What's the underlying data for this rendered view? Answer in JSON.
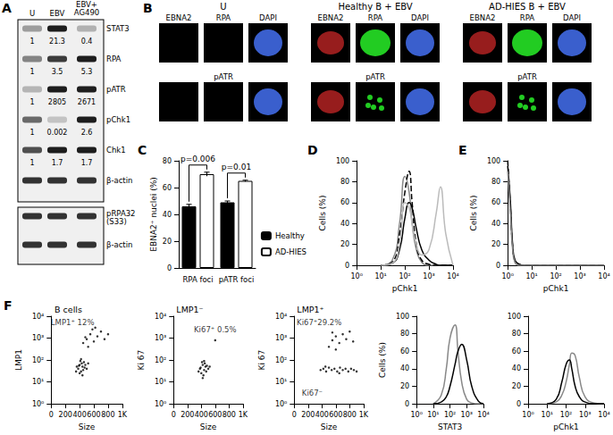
{
  "panel_A": {
    "label": "A",
    "lanes": [
      "U",
      "EBV",
      "EBV+\nAG490"
    ],
    "blots": [
      [
        {
          "name": "STAT3",
          "quant": [
            1,
            21.3,
            0.4
          ]
        },
        {
          "name": "RPA",
          "quant": [
            1,
            3.5,
            5.3
          ]
        },
        {
          "name": "pATR",
          "quant": [
            1,
            2805,
            2671
          ]
        },
        {
          "name": "pChk1",
          "quant": [
            1,
            0.002,
            2.6
          ]
        },
        {
          "name": "Chk1",
          "quant": [
            1,
            1.7,
            1.7
          ]
        },
        {
          "name": "β-actin"
        }
      ],
      [
        {
          "name": "pRPA32\n(S33)"
        },
        {
          "name": "β-actin"
        }
      ]
    ]
  },
  "panel_B": {
    "label": "B",
    "groups": [
      {
        "title": "U",
        "rows": [
          [
            "EBNA2",
            "RPA",
            "DAPI"
          ],
          [
            null,
            "pATR",
            null
          ]
        ]
      },
      {
        "title": "Healthy B + EBV",
        "rows": [
          [
            "EBNA2",
            "RPA",
            "DAPI"
          ],
          [
            null,
            "pATR",
            null
          ]
        ]
      },
      {
        "title": "AD-HIES B + EBV",
        "rows": [
          [
            "EBNA2",
            "RPA",
            "DAPI"
          ],
          [
            null,
            "pATR",
            null
          ]
        ]
      }
    ]
  },
  "chart_data": [
    {
      "panel": "C",
      "type": "bar",
      "categories": [
        "RPA foci",
        "pATR foci"
      ],
      "series": [
        {
          "name": "Healthy",
          "color": "#000000",
          "values": [
            46,
            49
          ],
          "errors": [
            1.5,
            1
          ]
        },
        {
          "name": "AD-HIES",
          "color": "#ffffff",
          "values": [
            70,
            65
          ],
          "errors": [
            1.5,
            0.5
          ]
        }
      ],
      "ylabel": "EBNA2⁺ nuclei (%)",
      "ylim": [
        0,
        80
      ],
      "yticks": [
        0,
        20,
        40,
        60,
        80
      ],
      "annotations": [
        {
          "text": "p=0.006",
          "category": "RPA foci"
        },
        {
          "text": "p=0.01",
          "category": "pATR foci"
        }
      ],
      "legend": "bottom-right"
    },
    {
      "panel": "D",
      "type": "line",
      "log": "x",
      "x": [
        10,
        30,
        60,
        100,
        150,
        200,
        300,
        500,
        1000,
        2000,
        3000,
        5000,
        10000
      ],
      "series": [
        {
          "color": "#888888",
          "line_style": "solid",
          "values": [
            0,
            5,
            40,
            85,
            70,
            40,
            15,
            3,
            0,
            0,
            0,
            0,
            0
          ]
        },
        {
          "color": "#000000",
          "line_style": "dashed",
          "values": [
            0,
            3,
            30,
            70,
            90,
            60,
            20,
            5,
            1,
            0,
            0,
            0,
            0
          ]
        },
        {
          "color": "#000000",
          "line_style": "solid",
          "values": [
            0,
            2,
            15,
            45,
            60,
            55,
            35,
            15,
            5,
            1,
            0,
            0,
            0
          ]
        },
        {
          "color": "#bbbbbb",
          "line_style": "solid",
          "values": [
            0,
            2,
            20,
            60,
            55,
            40,
            20,
            10,
            15,
            50,
            75,
            30,
            0
          ]
        }
      ],
      "xlabel": "pChk1",
      "ylabel": "Cells (%)",
      "xlim": [
        1,
        10000
      ],
      "xticks": [
        {
          "value": 1,
          "label": "10⁰"
        },
        {
          "value": 10,
          "label": "10¹"
        },
        {
          "value": 100,
          "label": "10²"
        },
        {
          "value": 1000,
          "label": "10³"
        },
        {
          "value": 10000,
          "label": "10⁴"
        }
      ],
      "ylim": [
        0,
        100
      ],
      "yticks": [
        0,
        20,
        40,
        60,
        80,
        100
      ]
    },
    {
      "panel": "E",
      "type": "line",
      "log": "x",
      "x": [
        1,
        1.3,
        1.6,
        2,
        3,
        5,
        10,
        100,
        10000
      ],
      "series": [
        {
          "color": "#000000",
          "line_style": "solid",
          "values": [
            95,
            60,
            20,
            5,
            1,
            0,
            0,
            0,
            0
          ]
        },
        {
          "color": "#000000",
          "line_style": "dashed",
          "values": [
            100,
            55,
            18,
            4,
            1,
            0,
            0,
            0,
            0
          ]
        },
        {
          "color": "#888888",
          "line_style": "solid",
          "values": [
            90,
            50,
            15,
            3,
            0,
            0,
            0,
            0,
            0
          ]
        }
      ],
      "xlabel": "pChk1",
      "ylabel": "Cells (%)",
      "xlim": [
        1,
        10000
      ],
      "xticks": [
        {
          "value": 1,
          "label": "10⁰"
        },
        {
          "value": 10,
          "label": "10¹"
        },
        {
          "value": 100,
          "label": "10²"
        },
        {
          "value": 1000,
          "label": "10³"
        },
        {
          "value": 10000,
          "label": "10⁴"
        }
      ],
      "ylim": [
        0,
        100
      ],
      "yticks": [
        0,
        20,
        40,
        60,
        80,
        100
      ]
    },
    {
      "panel": "F",
      "type": "scatter",
      "title": "B cells",
      "log": "y",
      "color": "#000000",
      "x": [
        380,
        400,
        420,
        440,
        460,
        400,
        430,
        470,
        410,
        450,
        390,
        480,
        500,
        420,
        360,
        440,
        520,
        350,
        450,
        500,
        550,
        600,
        650,
        700,
        520,
        580,
        750,
        800,
        480,
        620
      ],
      "values": [
        40,
        60,
        30,
        50,
        80,
        25,
        70,
        45,
        90,
        35,
        55,
        60,
        40,
        110,
        50,
        20,
        70,
        30,
        600,
        900,
        1500,
        700,
        1200,
        2000,
        400,
        2500,
        900,
        1500,
        1100,
        3000
      ],
      "annotations": [
        {
          "text": "LMP1⁺ 12%",
          "x": 300,
          "y": 5000
        }
      ],
      "xlabel": "Size",
      "ylabel": "LMP1",
      "xlim": [
        0,
        1000
      ],
      "xticks": [
        0,
        200,
        400,
        600,
        800,
        {
          "value": 1000,
          "label": "1K"
        }
      ],
      "ylim": [
        1,
        10000
      ],
      "yticks": [
        {
          "value": 1,
          "label": "10⁰"
        },
        {
          "value": 10,
          "label": "10¹"
        },
        {
          "value": 100,
          "label": "10²"
        },
        {
          "value": 1000,
          "label": "10³"
        },
        {
          "value": 10000,
          "label": "10⁴"
        }
      ]
    },
    {
      "type": "scatter",
      "title": "LMP1⁻",
      "log": "y",
      "color": "#000000",
      "x": [
        380,
        400,
        420,
        440,
        460,
        410,
        430,
        450,
        470,
        390,
        480,
        500,
        360,
        420,
        440,
        520,
        600
      ],
      "values": [
        40,
        25,
        60,
        35,
        50,
        80,
        20,
        70,
        30,
        45,
        55,
        40,
        30,
        15,
        90,
        50,
        800
      ],
      "annotations": [
        {
          "text": "Ki67⁺ 0.5%",
          "x": 600,
          "y": 2500
        }
      ],
      "xlabel": "Size",
      "ylabel": "Ki 67",
      "xlim": [
        0,
        1000
      ],
      "xticks": [
        0,
        200,
        400,
        600,
        800,
        {
          "value": 1000,
          "label": "1K"
        }
      ],
      "ylim": [
        1,
        10000
      ],
      "yticks": [
        {
          "value": 1,
          "label": "10⁰"
        },
        {
          "value": 10,
          "label": "10¹"
        },
        {
          "value": 100,
          "label": "10²"
        },
        {
          "value": 1000,
          "label": "10³"
        },
        {
          "value": 10000,
          "label": "10⁴"
        }
      ]
    },
    {
      "type": "scatter",
      "title": "LMP1⁺",
      "log": "y",
      "color": "#000000",
      "x": [
        380,
        420,
        460,
        500,
        540,
        580,
        620,
        660,
        700,
        740,
        780,
        820,
        860,
        900,
        450,
        650,
        500,
        550,
        600,
        650,
        700,
        750,
        800,
        600,
        850,
        550
      ],
      "values": [
        35,
        40,
        30,
        45,
        35,
        40,
        30,
        45,
        35,
        40,
        30,
        40,
        35,
        30,
        50,
        25,
        400,
        800,
        1200,
        600,
        1500,
        900,
        2000,
        300,
        700,
        1800
      ],
      "annotations": [
        {
          "text": "Ki67⁺29.2%",
          "x": 360,
          "y": 5000
        },
        {
          "text": "Ki67⁻",
          "x": 260,
          "y": 3
        }
      ],
      "xlabel": "Size",
      "ylabel": "Ki 67",
      "xlim": [
        0,
        1000
      ],
      "xticks": [
        0,
        200,
        400,
        600,
        800,
        {
          "value": 1000,
          "label": "1K"
        }
      ],
      "ylim": [
        1,
        10000
      ],
      "yticks": [
        {
          "value": 1,
          "label": "10⁰"
        },
        {
          "value": 10,
          "label": "10¹"
        },
        {
          "value": 100,
          "label": "10²"
        },
        {
          "value": 1000,
          "label": "10³"
        },
        {
          "value": 10000,
          "label": "10⁴"
        }
      ]
    },
    {
      "type": "line",
      "log": "x",
      "x": [
        10,
        30,
        60,
        100,
        200,
        300,
        500,
        1000,
        2000,
        5000,
        10000
      ],
      "series": [
        {
          "color": "#888888",
          "line_style": "solid",
          "values": [
            0,
            10,
            40,
            75,
            90,
            60,
            25,
            5,
            1,
            0,
            0
          ]
        },
        {
          "color": "#000000",
          "line_style": "solid",
          "values": [
            0,
            2,
            8,
            20,
            45,
            60,
            68,
            50,
            20,
            3,
            0
          ]
        }
      ],
      "xlabel": "STAT3",
      "ylabel": "Cells (%)",
      "xlim": [
        1,
        10000
      ],
      "xticks": [
        {
          "value": 1,
          "label": "10⁰"
        },
        {
          "value": 10,
          "label": "10¹"
        },
        {
          "value": 100,
          "label": "10²"
        },
        {
          "value": 1000,
          "label": "10³"
        },
        {
          "value": 10000,
          "label": "10⁴"
        }
      ],
      "ylim": [
        0,
        100
      ],
      "yticks": [
        0,
        20,
        40,
        60,
        80,
        100
      ]
    },
    {
      "type": "line",
      "log": "x",
      "x": [
        10,
        30,
        60,
        100,
        150,
        200,
        300,
        500,
        1000,
        3000,
        10000
      ],
      "series": [
        {
          "color": "#888888",
          "line_style": "solid",
          "values": [
            0,
            2,
            10,
            25,
            45,
            58,
            55,
            30,
            8,
            1,
            0
          ]
        },
        {
          "color": "#000000",
          "line_style": "solid",
          "values": [
            0,
            5,
            25,
            45,
            50,
            40,
            20,
            8,
            2,
            0,
            0
          ]
        }
      ],
      "xlabel": "pChk1",
      "xlim": [
        1,
        10000
      ],
      "xticks": [
        {
          "value": 1,
          "label": "10⁰"
        },
        {
          "value": 10,
          "label": "10¹"
        },
        {
          "value": 100,
          "label": "10²"
        },
        {
          "value": 1000,
          "label": "10³"
        },
        {
          "value": 10000,
          "label": "10⁴"
        }
      ],
      "ylim": [
        0,
        100
      ],
      "yticks": [
        0,
        20,
        40,
        60,
        80,
        100
      ]
    }
  ]
}
